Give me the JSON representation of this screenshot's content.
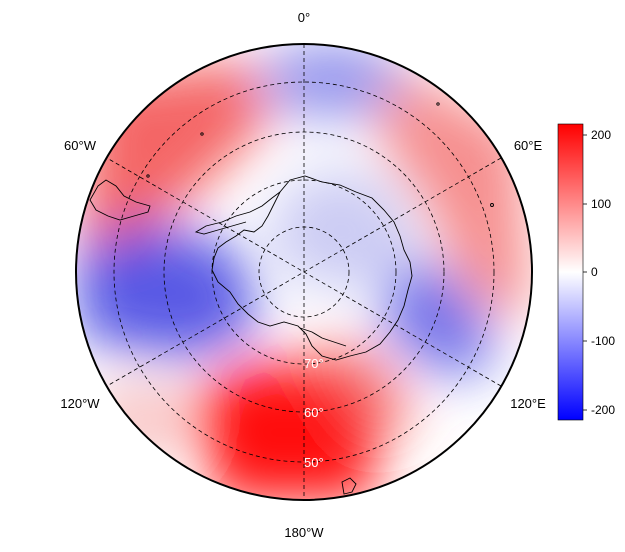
{
  "projection": "south-polar-stereographic",
  "longitude_labels": {
    "top": "0°",
    "upper_left": "60°W",
    "upper_right": "60°E",
    "lower_left": "120°W",
    "lower_right": "120°E",
    "bottom": "180°W"
  },
  "latitude_labels": [
    "70°",
    "60°",
    "50°"
  ],
  "colorbar": {
    "ticks": [
      "200",
      "100",
      "0",
      "-100",
      "-200"
    ],
    "min": -215,
    "max": 215,
    "colors": {
      "max": "#ff0000",
      "mid": "#ffffff",
      "min": "#0000ff"
    }
  },
  "field": {
    "description_colors": {
      "positive": "#ff0000",
      "zero": "#ffffff",
      "negative": "#0000ff"
    },
    "anomalies": [
      {
        "lon": 180,
        "lat": -55,
        "value": 210
      },
      {
        "lon": -60,
        "lat": -55,
        "value": 130
      },
      {
        "lon": 70,
        "lat": -55,
        "value": 110
      },
      {
        "lon": -100,
        "lat": -60,
        "value": -160
      },
      {
        "lon": 110,
        "lat": -62,
        "value": -120
      },
      {
        "lon": 10,
        "lat": -52,
        "value": -90
      },
      {
        "lon": 170,
        "lat": -75,
        "value": 40
      }
    ]
  },
  "grid_style": "dashed"
}
